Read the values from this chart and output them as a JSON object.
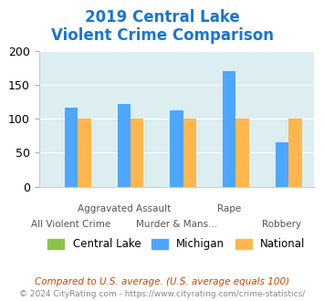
{
  "title_line1": "2019 Central Lake",
  "title_line2": "Violent Crime Comparison",
  "categories": [
    "All Violent Crime",
    "Aggravated Assault",
    "Murder & Mans...",
    "Rape",
    "Robbery"
  ],
  "central_lake": [
    0,
    0,
    0,
    0,
    0
  ],
  "michigan": [
    116,
    122,
    112,
    170,
    65
  ],
  "national": [
    100,
    100,
    100,
    100,
    100
  ],
  "color_central_lake": "#8bc34a",
  "color_michigan": "#4da6ff",
  "color_national": "#ffb74d",
  "title_color": "#1a75d2",
  "bg_color": "#ddeef0",
  "ylim": [
    0,
    200
  ],
  "yticks": [
    0,
    50,
    100,
    150,
    200
  ],
  "footnote1": "Compared to U.S. average. (U.S. average equals 100)",
  "footnote2": "© 2024 CityRating.com - https://www.cityrating.com/crime-statistics/",
  "footnote1_color": "#cc4400",
  "footnote2_color": "#888888"
}
